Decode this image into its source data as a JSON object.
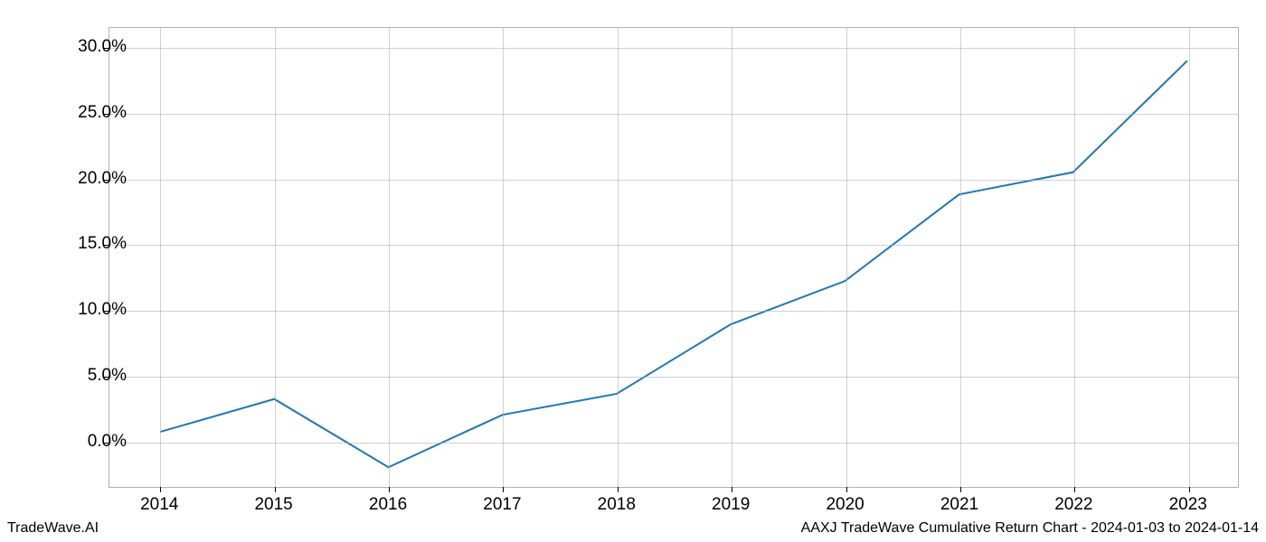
{
  "chart": {
    "type": "line",
    "x_labels": [
      "2014",
      "2015",
      "2016",
      "2017",
      "2018",
      "2019",
      "2020",
      "2021",
      "2022",
      "2023"
    ],
    "y_values": [
      0.7,
      3.2,
      -2.0,
      2.0,
      3.6,
      8.9,
      12.2,
      18.8,
      20.5,
      29.0
    ],
    "y_ticks": [
      0,
      5,
      10,
      15,
      20,
      25,
      30
    ],
    "y_tick_labels": [
      "0.0%",
      "5.0%",
      "10.0%",
      "15.0%",
      "20.0%",
      "25.0%",
      "30.0%"
    ],
    "ylim": [
      -3.5,
      31.5
    ],
    "xlim_pad": 0.045,
    "line_color": "#1f77b4",
    "line_width": 2,
    "grid_color": "#b0b0b0",
    "background_color": "#ffffff",
    "tick_fontsize": 19
  },
  "footer": {
    "left": "TradeWave.AI",
    "right": "AAXJ TradeWave Cumulative Return Chart - 2024-01-03 to 2024-01-14"
  }
}
